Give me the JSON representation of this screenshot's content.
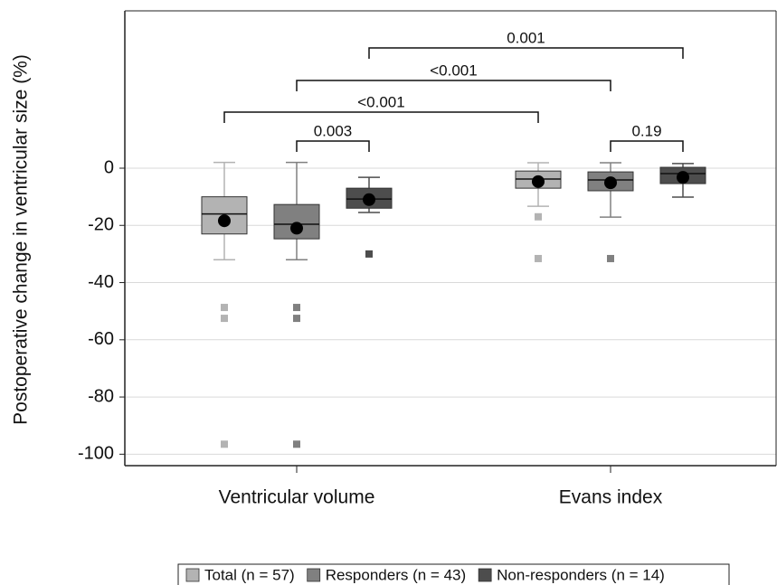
{
  "chart_data": {
    "type": "box",
    "y_label": "Postoperative change in ventricular size (%)",
    "categories": [
      "Ventricular volume",
      "Evans index"
    ],
    "ylim": [
      -104,
      55
    ],
    "yticks": [
      0,
      -20,
      -40,
      -60,
      -80,
      -100
    ],
    "grid": true,
    "series": [
      {
        "name": "Total (n = 57)",
        "color": "#b3b3b3",
        "boxes": [
          {
            "whislo": -32,
            "q1": -23,
            "med": -16,
            "q3": -10,
            "whishi": 2,
            "mean": -18.4,
            "fliers": [
              -48.7,
              -52.5,
              -96.5
            ]
          },
          {
            "whislo": -13.3,
            "q1": -7,
            "med": -3.8,
            "q3": -1,
            "whishi": 1.9,
            "mean": -4.7,
            "fliers": [
              -17,
              -31.6
            ]
          }
        ]
      },
      {
        "name": "Responders (n = 43)",
        "color": "#808080",
        "boxes": [
          {
            "whislo": -32,
            "q1": -24.7,
            "med": -19.6,
            "q3": -12.7,
            "whishi": 2,
            "mean": -21,
            "fliers": [
              -48.7,
              -52.5,
              -96.5
            ]
          },
          {
            "whislo": -17.1,
            "q1": -7.9,
            "med": -4.1,
            "q3": -1.3,
            "whishi": 1.9,
            "mean": -5.1,
            "fliers": [
              -31.6
            ]
          }
        ]
      },
      {
        "name": "Non-responders (n = 14)",
        "color": "#4d4d4d",
        "boxes": [
          {
            "whislo": -15.5,
            "q1": -14,
            "med": -10.8,
            "q3": -7,
            "whishi": -3.2,
            "mean": -11,
            "fliers": [
              -30
            ]
          },
          {
            "whislo": -10.1,
            "q1": -5.4,
            "med": -1.9,
            "q3": 0.3,
            "whishi": 1.6,
            "mean": -3.2,
            "fliers": []
          }
        ]
      }
    ],
    "annotations": [
      "0.001",
      "<0.001",
      "<0.001",
      "0.003",
      "0.19"
    ]
  }
}
